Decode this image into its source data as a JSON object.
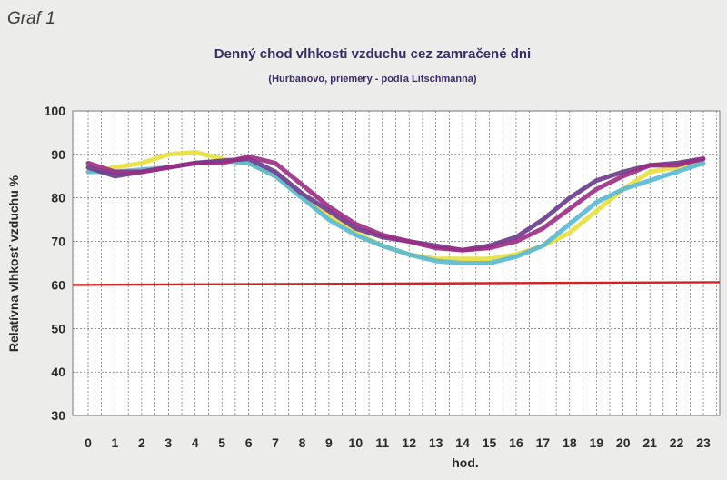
{
  "header": {
    "graf_label": "Graf 1"
  },
  "chart_data": {
    "type": "line",
    "title": "Denný chod vlhkosti vzduchu cez zamračené dni",
    "subtitle": "(Hurbanovo, priemery - podľa Litschmanna)",
    "xlabel": "hod.",
    "ylabel": "Relatívna vlhkosť vzduchu %",
    "ylim": [
      30,
      100
    ],
    "yticks": [
      30,
      40,
      50,
      60,
      70,
      80,
      90,
      100
    ],
    "x": [
      0,
      1,
      2,
      3,
      4,
      5,
      6,
      7,
      8,
      9,
      10,
      11,
      12,
      13,
      14,
      15,
      16,
      17,
      18,
      19,
      20,
      21,
      22,
      23
    ],
    "grid": true,
    "reference_line": {
      "value": 60,
      "color": "#d42020"
    },
    "series": [
      {
        "color": "#e6df3c",
        "values": [
          86,
          87,
          88,
          90,
          90.5,
          89,
          88,
          85,
          80,
          76,
          72,
          69,
          67,
          66,
          66,
          66,
          67,
          69,
          72,
          77,
          82,
          86,
          87,
          88
        ]
      },
      {
        "color": "#58b8d6",
        "values": [
          86,
          86,
          86.5,
          87,
          88,
          88.5,
          88,
          85,
          80,
          75,
          71.5,
          69,
          67,
          65.5,
          65,
          65,
          66.5,
          69,
          74,
          79,
          82,
          84,
          86,
          88
        ]
      },
      {
        "color": "#6a3a8a",
        "values": [
          87,
          85,
          86,
          87,
          88,
          88.5,
          89,
          86,
          81,
          77,
          73,
          71,
          70,
          69,
          68,
          69,
          71,
          75,
          80,
          84,
          86,
          87.5,
          88,
          89
        ]
      },
      {
        "color": "#9a2c84",
        "values": [
          88,
          86,
          86,
          87,
          88,
          88,
          89.5,
          88,
          83,
          78,
          74,
          71.5,
          70,
          68.5,
          68,
          68.5,
          70,
          73,
          77.5,
          82,
          85,
          87.5,
          87.5,
          89
        ]
      }
    ]
  }
}
